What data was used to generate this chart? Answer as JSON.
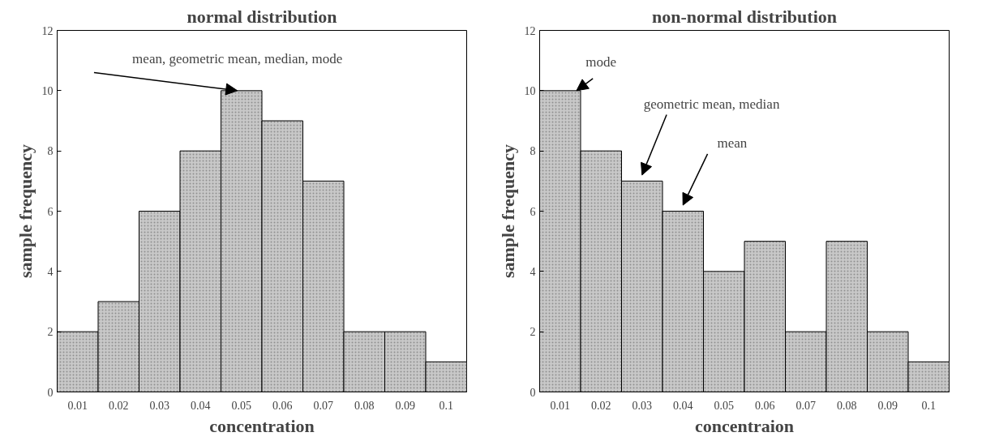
{
  "chart_data": [
    {
      "type": "bar",
      "title": "normal distribution",
      "xlabel": "concentration",
      "ylabel": "sample frequency",
      "categories": [
        "0.01",
        "0.02",
        "0.03",
        "0.04",
        "0.05",
        "0.06",
        "0.07",
        "0.08",
        "0.09",
        "0.1"
      ],
      "series": [
        {
          "color": "#c8c8c8",
          "values": [
            2,
            3,
            6,
            8,
            10,
            9,
            7,
            2,
            2,
            1
          ]
        }
      ],
      "ylim": [
        0,
        12
      ],
      "yticks": [
        0,
        2,
        4,
        6,
        8,
        10,
        12
      ],
      "grid": false,
      "annotations": [
        {
          "text": "mean, geometric mean, median, mode",
          "x": "0.05",
          "y": 10
        }
      ]
    },
    {
      "type": "bar",
      "title": "non-normal distribution",
      "xlabel": "concentraion",
      "ylabel": "sample frequency",
      "categories": [
        "0.01",
        "0.02",
        "0.03",
        "0.04",
        "0.05",
        "0.06",
        "0.07",
        "0.08",
        "0.09",
        "0.1"
      ],
      "series": [
        {
          "color": "#c8c8c8",
          "values": [
            10,
            8,
            7,
            6,
            4,
            5,
            2,
            5,
            2,
            1
          ]
        }
      ],
      "ylim": [
        0,
        12
      ],
      "yticks": [
        0,
        2,
        4,
        6,
        8,
        10,
        12
      ],
      "grid": false,
      "annotations": [
        {
          "text": "mode",
          "x": "0.01",
          "y": 10
        },
        {
          "text": "geometric mean, median",
          "x": "0.03",
          "y": 7
        },
        {
          "text": "mean",
          "x": "0.04",
          "y": 6
        }
      ]
    }
  ]
}
